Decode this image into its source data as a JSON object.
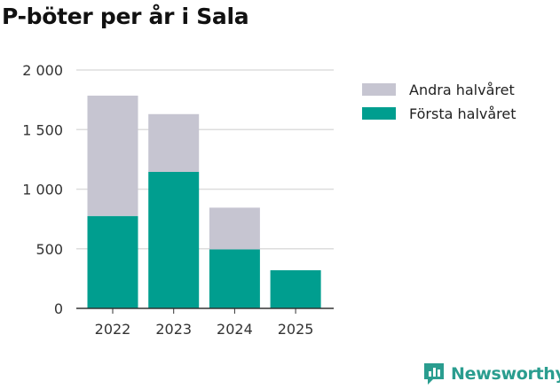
{
  "chart_data": {
    "type": "bar",
    "stacked": true,
    "title": "P-böter per år i Sala",
    "categories": [
      "2022",
      "2023",
      "2024",
      "2025"
    ],
    "series": [
      {
        "name": "Första halvåret",
        "color": "#009e8f",
        "values": [
          775,
          1145,
          495,
          320
        ]
      },
      {
        "name": "Andra halvåret",
        "color": "#c6c5d1",
        "values": [
          1010,
          485,
          350,
          0
        ]
      }
    ],
    "ylim": [
      0,
      2000
    ],
    "yticks": [
      0,
      500,
      1000,
      1500,
      2000
    ],
    "ytick_labels": [
      "0",
      "500",
      "1 000",
      "1 500",
      "2 000"
    ],
    "legend": [
      {
        "label": "Andra halvåret",
        "color": "#c6c5d1"
      },
      {
        "label": "Första halvåret",
        "color": "#009e8f"
      }
    ],
    "grid": true,
    "xlabel": "",
    "ylabel": ""
  },
  "brand": {
    "name": "Newsworthy",
    "color": "#2a9d8f"
  }
}
